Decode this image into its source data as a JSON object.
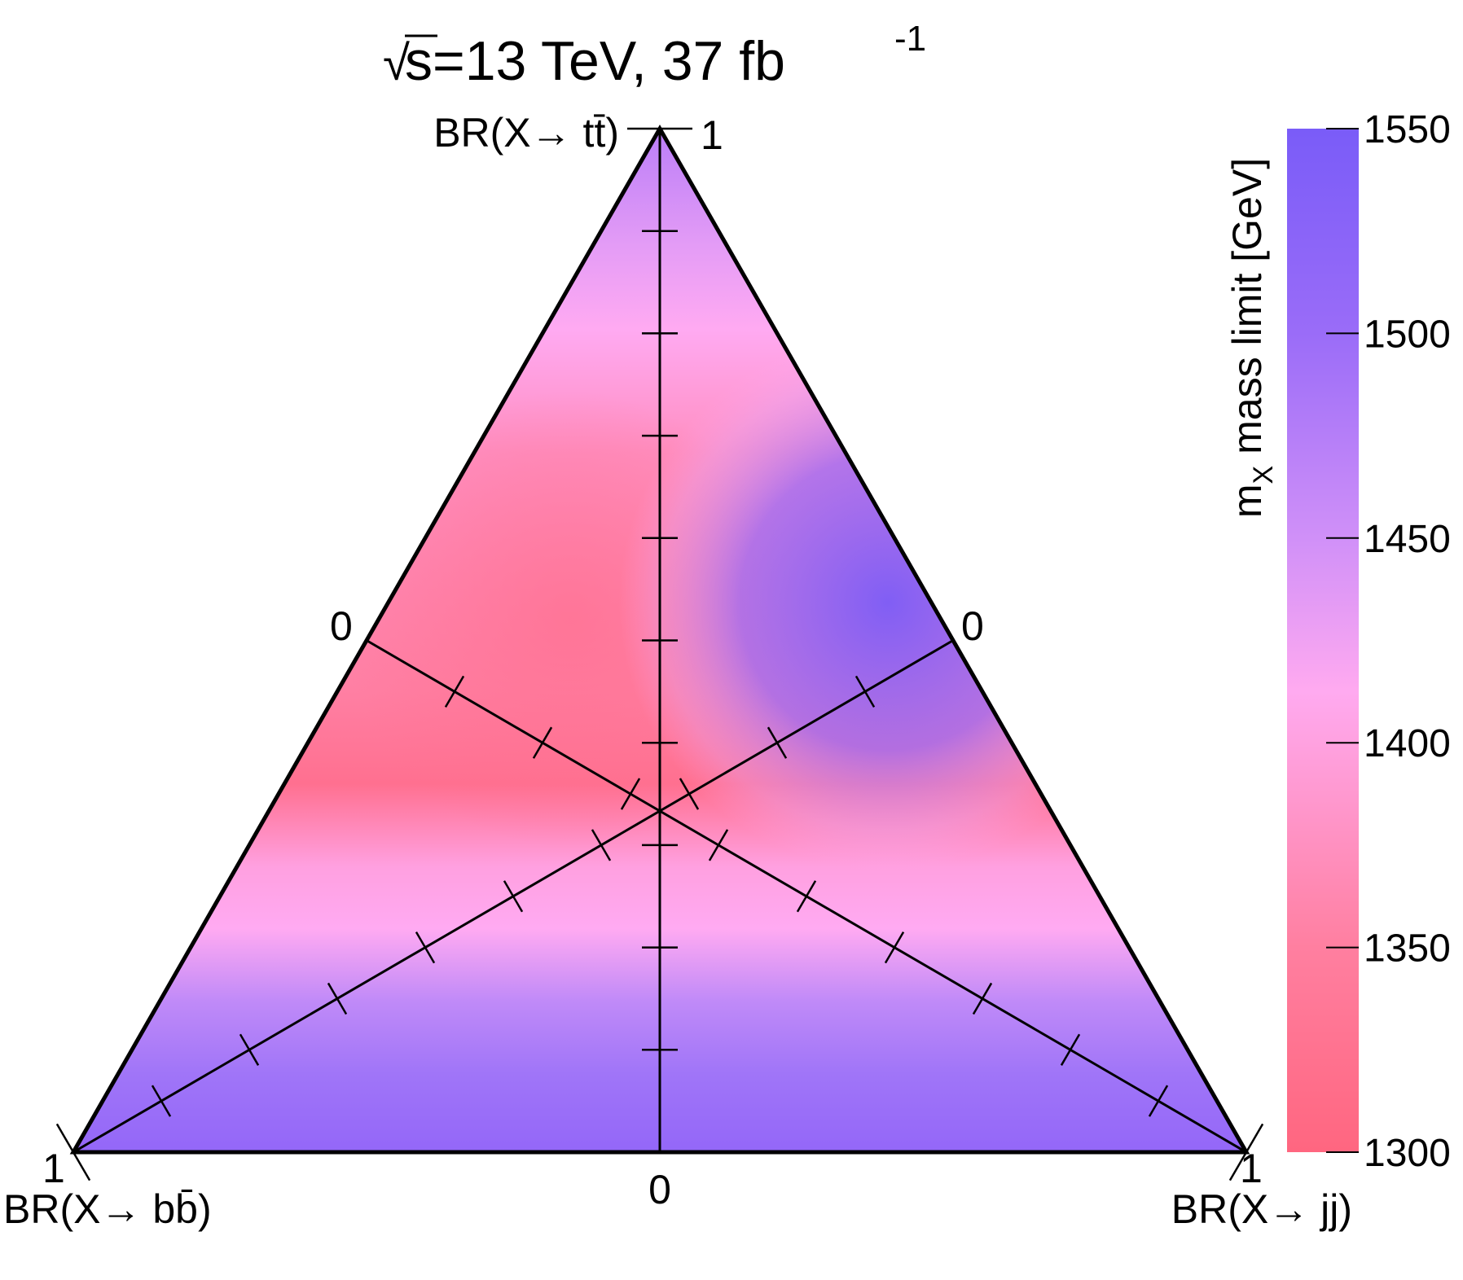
{
  "chart_data": {
    "type": "heatmap",
    "subtype": "ternary",
    "title": {
      "root_symbol": "√",
      "text": "s=13 TeV, 37 fb",
      "superscript": "-1"
    },
    "corners": {
      "top": "BR(X→ tt̄)",
      "bottom_left": "BR(X→ bb̄)",
      "bottom_right": "BR(X→ jj)"
    },
    "axis_tick_labels": {
      "tt_max": "1",
      "tt_min": "0",
      "bb_max": "1",
      "bb_min": "0",
      "jj_max": "1",
      "jj_min": "0"
    },
    "axis_ticks_per_axis": 10,
    "colorbar": {
      "label": "m",
      "label_subscript": "X",
      "label_rest": " mass limit [GeV]",
      "min": 1300,
      "max": 1550,
      "ticks": [
        "1300",
        "1350",
        "1400",
        "1450",
        "1500",
        "1550"
      ],
      "colors": [
        "#ff6680",
        "#ff7fa0",
        "#ffaaf0",
        "#d090f8",
        "#9a6cf8",
        "#7a5cf8"
      ]
    },
    "grid_samples": [
      {
        "bb": 0.0,
        "tt": 1.0,
        "jj": 0.0,
        "mass": 1470
      },
      {
        "bb": 0.55,
        "tt": 0.45,
        "jj": 0.0,
        "mass": 1350
      },
      {
        "bb": 0.0,
        "tt": 0.45,
        "jj": 0.55,
        "mass": 1520
      },
      {
        "bb": 0.33,
        "tt": 0.34,
        "jj": 0.33,
        "mass": 1390
      },
      {
        "bb": 1.0,
        "tt": 0.0,
        "jj": 0.0,
        "mass": 1535
      },
      {
        "bb": 0.0,
        "tt": 0.0,
        "jj": 1.0,
        "mass": 1530
      },
      {
        "bb": 0.5,
        "tt": 0.0,
        "jj": 0.5,
        "mass": 1530
      }
    ]
  }
}
